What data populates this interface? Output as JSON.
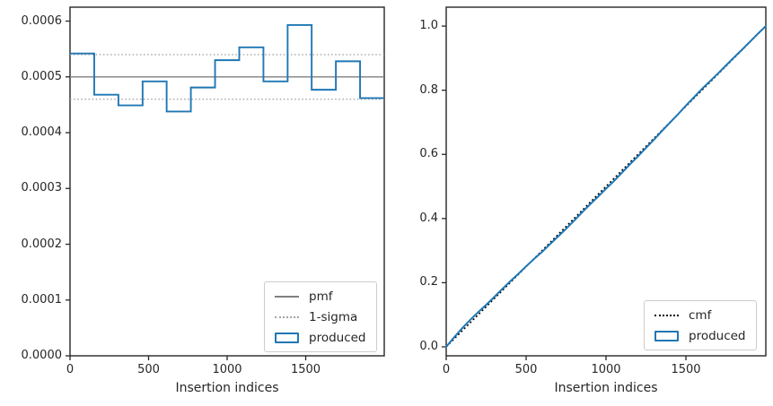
{
  "colors": {
    "background": "#ffffff",
    "produced_blue": "#1f77b4",
    "pmf_gray": "#7f7f7f",
    "sigma_gray": "#a3a3a3",
    "cmf_black": "#000000",
    "spine": "#262626",
    "text": "#262626",
    "legend_border": "#cccccc"
  },
  "chart_data": [
    {
      "type": "bar",
      "style": "step-outline-histogram",
      "title": "",
      "xlabel": "Insertion indices",
      "ylabel": "",
      "xlim": [
        0,
        2000
      ],
      "ylim": [
        0,
        0.000625
      ],
      "grid": false,
      "xtick_values": [
        0,
        500,
        1000,
        1500
      ],
      "xtick_labels": [
        "0",
        "500",
        "1000",
        "1500"
      ],
      "ytick_values": [
        0.0,
        0.0001,
        0.0002,
        0.0003,
        0.0004,
        0.0005,
        0.0006
      ],
      "ytick_labels": [
        "0.0000",
        "0.0001",
        "0.0002",
        "0.0003",
        "0.0004",
        "0.0005",
        "0.0006"
      ],
      "bin_edges": [
        0,
        154,
        308,
        462,
        615,
        769,
        923,
        1077,
        1231,
        1385,
        1538,
        1692,
        1846,
        2000
      ],
      "bin_values": [
        0.000542,
        0.000468,
        0.000449,
        0.000492,
        0.000438,
        0.000481,
        0.00053,
        0.000553,
        0.000492,
        0.000593,
        0.000477,
        0.000528,
        0.000462
      ],
      "pmf_value": 0.0005,
      "sigma_upper": 0.00054,
      "sigma_lower": 0.00046,
      "legend_position": "lower-right",
      "legend": [
        {
          "label": "pmf",
          "style": "solid-gray-line"
        },
        {
          "label": "1-sigma",
          "style": "dotted-gray-line"
        },
        {
          "label": "produced",
          "style": "blue-outline-patch"
        }
      ]
    },
    {
      "type": "line",
      "title": "",
      "xlabel": "Insertion indices",
      "ylabel": "",
      "xlim": [
        0,
        2000
      ],
      "ylim": [
        -0.028,
        1.059
      ],
      "grid": false,
      "xtick_values": [
        0,
        500,
        1000,
        1500
      ],
      "xtick_labels": [
        "0",
        "500",
        "1000",
        "1500"
      ],
      "ytick_values": [
        0.0,
        0.2,
        0.4,
        0.6,
        0.8,
        1.0
      ],
      "ytick_labels": [
        "0.0",
        "0.2",
        "0.4",
        "0.6",
        "0.8",
        "1.0"
      ],
      "series": [
        {
          "name": "cmf",
          "style": "dotted-black-line",
          "x": [
            0,
            2000
          ],
          "y": [
            0.0,
            1.0
          ]
        },
        {
          "name": "produced",
          "style": "solid-blue-line",
          "x": [
            0,
            50,
            100,
            150,
            200,
            250,
            300,
            350,
            400,
            450,
            500,
            550,
            600,
            650,
            700,
            750,
            800,
            850,
            900,
            950,
            1000,
            1050,
            1100,
            1150,
            1200,
            1250,
            1300,
            1350,
            1400,
            1450,
            1500,
            1550,
            1600,
            1650,
            1700,
            1750,
            1800,
            1850,
            1900,
            1950,
            2000
          ],
          "y": [
            0.0,
            0.03,
            0.058,
            0.084,
            0.108,
            0.131,
            0.155,
            0.18,
            0.204,
            0.227,
            0.251,
            0.274,
            0.296,
            0.32,
            0.344,
            0.368,
            0.393,
            0.419,
            0.444,
            0.468,
            0.493,
            0.517,
            0.543,
            0.569,
            0.594,
            0.62,
            0.646,
            0.673,
            0.699,
            0.725,
            0.752,
            0.778,
            0.804,
            0.828,
            0.852,
            0.877,
            0.902,
            0.926,
            0.951,
            0.976,
            1.0
          ]
        }
      ],
      "legend_position": "lower-right",
      "legend": [
        {
          "label": "cmf",
          "style": "dotted-black-line"
        },
        {
          "label": "produced",
          "style": "blue-outline-patch"
        }
      ]
    }
  ]
}
